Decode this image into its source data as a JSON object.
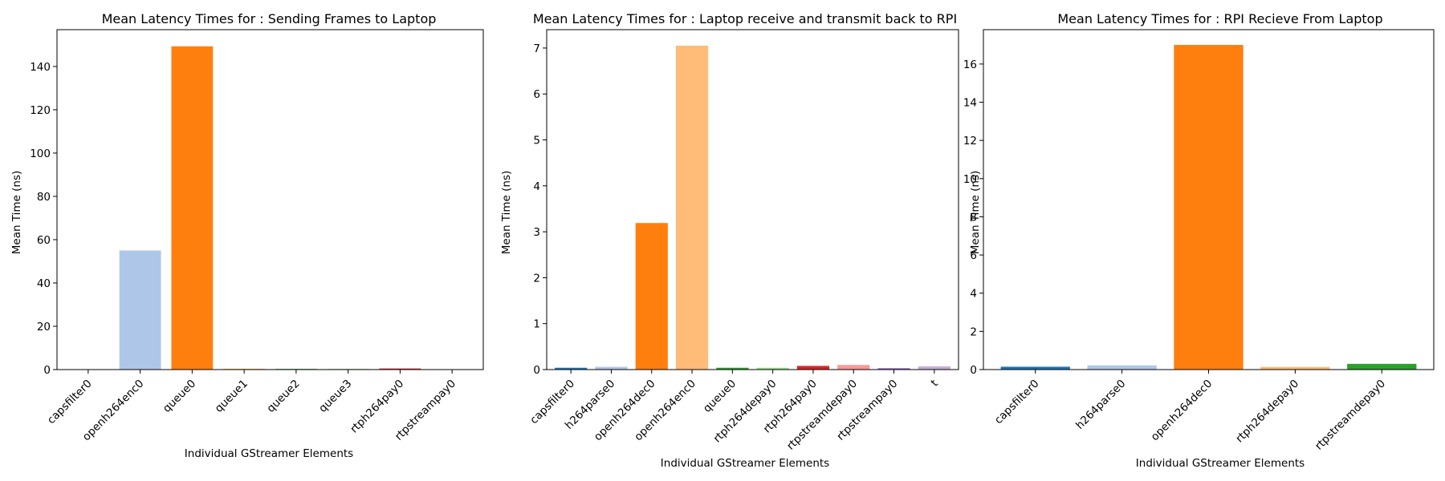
{
  "chart_data": [
    {
      "type": "bar",
      "title": "Mean Latency Times for : Sending Frames to Laptop",
      "xlabel": "Individual GStreamer Elements",
      "ylabel": "Mean Time (ns)",
      "ylim": [
        0,
        157
      ],
      "yticks": [
        0,
        20,
        40,
        60,
        80,
        100,
        120,
        140
      ],
      "categories": [
        "capsfilter0",
        "openh264enc0",
        "queue0",
        "queue1",
        "queue2",
        "queue3",
        "rtph264pay0",
        "rtpstreampay0"
      ],
      "values": [
        0.1,
        55,
        149.3,
        0.4,
        0.3,
        0.3,
        0.5,
        0.1
      ],
      "colors": [
        "#1f77b4",
        "#aec7e8",
        "#ff7f0e",
        "#ffbb78",
        "#2ca02c",
        "#98df8a",
        "#d62728",
        "#ff9896"
      ],
      "grid": false,
      "legend": "none"
    },
    {
      "type": "bar",
      "title": "Mean Latency Times for : Laptop receive and transmit back to RPI",
      "xlabel": "Individual GStreamer Elements",
      "ylabel": "Mean Time (ns)",
      "ylim": [
        0,
        7.4
      ],
      "yticks": [
        0,
        1,
        2,
        3,
        4,
        5,
        6,
        7
      ],
      "categories": [
        "capsfilter0",
        "h264parse0",
        "openh264dec0",
        "openh264enc0",
        "queue0",
        "rtph264depay0",
        "rtph264pay0",
        "rtpstreamdepay0",
        "rtpstreampay0",
        "t"
      ],
      "values": [
        0.04,
        0.06,
        3.19,
        7.05,
        0.04,
        0.04,
        0.08,
        0.1,
        0.03,
        0.07
      ],
      "colors": [
        "#1f77b4",
        "#aec7e8",
        "#ff7f0e",
        "#ffbb78",
        "#2ca02c",
        "#98df8a",
        "#d62728",
        "#ff9896",
        "#9467bd",
        "#c5b0d5"
      ],
      "grid": false,
      "legend": "none"
    },
    {
      "type": "bar",
      "title": "Mean Latency Times for : RPI Recieve From Laptop",
      "xlabel": "Individual GStreamer Elements",
      "ylabel": "Mean Time (ns)",
      "ylim": [
        0,
        17.8
      ],
      "yticks": [
        0,
        2,
        4,
        6,
        8,
        10,
        12,
        14,
        16
      ],
      "categories": [
        "capsfilter0",
        "h264parse0",
        "openh264dec0",
        "rtph264depay0",
        "rtpstreamdepay0"
      ],
      "values": [
        0.15,
        0.22,
        17.0,
        0.14,
        0.3
      ],
      "colors": [
        "#1f77b4",
        "#aec7e8",
        "#ff7f0e",
        "#ffbb78",
        "#2ca02c"
      ],
      "grid": false,
      "legend": "none"
    }
  ]
}
